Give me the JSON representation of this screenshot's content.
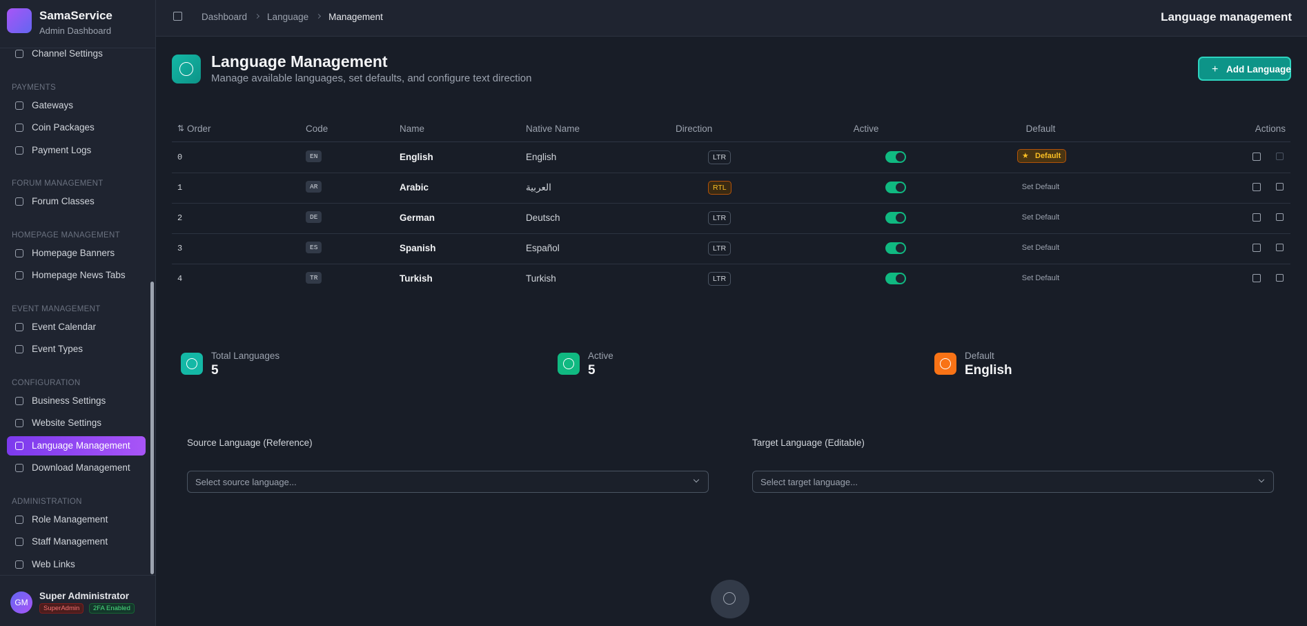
{
  "sidebar": {
    "brand": "SamaService",
    "subtitle": "Admin Dashboard",
    "sections": [
      {
        "items": [
          "Channel Settings"
        ]
      },
      {
        "title": "PAYMENTS",
        "items": [
          "Gateways",
          "Coin Packages",
          "Payment Logs"
        ]
      },
      {
        "title": "FORUM MANAGEMENT",
        "items": [
          "Forum Classes"
        ]
      },
      {
        "title": "HOMEPAGE MANAGEMENT",
        "items": [
          "Homepage Banners",
          "Homepage News Tabs"
        ]
      },
      {
        "title": "EVENT MANAGEMENT",
        "items": [
          "Event Calendar",
          "Event Types"
        ]
      },
      {
        "title": "CONFIGURATION",
        "items": [
          "Business Settings",
          "Website Settings",
          "Language Management",
          "Download Management"
        ]
      },
      {
        "title": "ADMINISTRATION",
        "items": [
          "Role Management",
          "Staff Management",
          "Web Links"
        ]
      }
    ],
    "user": {
      "initials": "GM",
      "name": "Super Administrator",
      "badges": [
        "SuperAdmin",
        "2FA Enabled"
      ]
    }
  },
  "header": {
    "breadcrumb": [
      "Dashboard",
      "Language",
      "Management"
    ],
    "page_title": "Language management"
  },
  "page": {
    "title": "Language Management",
    "subtitle": "Manage available languages, set defaults, and configure text direction",
    "add_button": "Add Language"
  },
  "table": {
    "columns": [
      "Order",
      "Code",
      "Name",
      "Native Name",
      "Direction",
      "Active",
      "Default",
      "Actions"
    ],
    "rows": [
      [
        0,
        "EN",
        "English",
        "English",
        "LTR",
        "Default"
      ],
      [
        1,
        "AR",
        "Arabic",
        "العربية",
        "RTL",
        "Set Default"
      ],
      [
        2,
        "DE",
        "German",
        "Deutsch",
        "LTR",
        "Set Default"
      ],
      [
        3,
        "ES",
        "Spanish",
        "Español",
        "LTR",
        "Set Default"
      ],
      [
        4,
        "TR",
        "Turkish",
        "Turkish",
        "LTR",
        "Set Default"
      ]
    ]
  },
  "stats": [
    {
      "label": "Total Languages",
      "value": 5
    },
    {
      "label": "Active",
      "value": 5
    },
    {
      "label": "Default",
      "value": "English"
    }
  ],
  "translation": {
    "source": {
      "label": "Source Language (Reference)",
      "placeholder": "Select source language..."
    },
    "target": {
      "label": "Target Language (Editable)",
      "placeholder": "Select target language..."
    }
  }
}
